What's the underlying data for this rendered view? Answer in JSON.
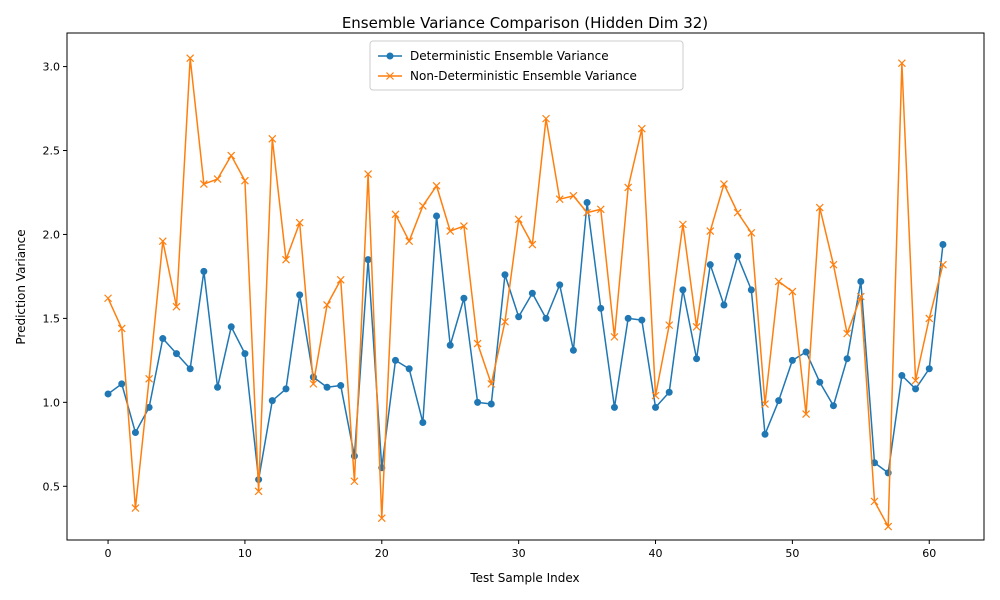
{
  "chart_data": {
    "type": "line",
    "title": "Ensemble Variance Comparison (Hidden Dim 32)",
    "xlabel": "Test Sample Index",
    "ylabel": "Prediction Variance",
    "xlim": [
      -3,
      64
    ],
    "ylim": [
      0.18,
      3.2
    ],
    "xticks": [
      0,
      10,
      20,
      30,
      40,
      50,
      60
    ],
    "yticks": [
      0.5,
      1.0,
      1.5,
      2.0,
      2.5,
      3.0
    ],
    "xtick_labels": [
      "0",
      "10",
      "20",
      "30",
      "40",
      "50",
      "60"
    ],
    "ytick_labels": [
      "0.5",
      "1.0",
      "1.5",
      "2.0",
      "2.5",
      "3.0"
    ],
    "grid": false,
    "legend_position": "top-center",
    "series": [
      {
        "name": "Deterministic Ensemble Variance",
        "color": "#1f77b4",
        "marker": "circle",
        "values": [
          1.05,
          1.11,
          0.82,
          0.97,
          1.38,
          1.29,
          1.2,
          1.78,
          1.09,
          1.45,
          1.29,
          0.54,
          1.01,
          1.08,
          1.64,
          1.15,
          1.09,
          1.1,
          0.68,
          1.85,
          0.61,
          1.25,
          1.2,
          0.88,
          2.11,
          1.34,
          1.62,
          1.0,
          0.99,
          1.76,
          1.51,
          1.65,
          1.5,
          1.7,
          1.31,
          2.19,
          1.56,
          0.97,
          1.5,
          1.49,
          0.97,
          1.06,
          1.67,
          1.26,
          1.82,
          1.58,
          1.87,
          1.67,
          0.81,
          1.01,
          1.25,
          1.3,
          1.12,
          0.98,
          1.26,
          1.72,
          0.64,
          0.58,
          1.16,
          1.08,
          1.2,
          1.94
        ]
      },
      {
        "name": "Non-Deterministic Ensemble Variance",
        "color": "#ff7f0e",
        "marker": "x",
        "values": [
          1.62,
          1.44,
          0.37,
          1.14,
          1.96,
          1.57,
          3.05,
          2.3,
          2.33,
          2.47,
          2.32,
          0.47,
          2.57,
          1.85,
          2.07,
          1.11,
          1.58,
          1.73,
          0.53,
          2.36,
          0.31,
          2.12,
          1.96,
          2.17,
          2.29,
          2.02,
          2.05,
          1.35,
          1.11,
          1.48,
          2.09,
          1.94,
          2.69,
          2.21,
          2.23,
          2.13,
          2.15,
          1.39,
          2.28,
          2.63,
          1.04,
          1.46,
          2.06,
          1.45,
          2.02,
          2.3,
          2.13,
          2.01,
          0.99,
          1.72,
          1.66,
          0.93,
          2.16,
          1.82,
          1.41,
          1.63,
          0.41,
          0.26,
          3.02,
          1.13,
          1.5,
          1.82
        ]
      }
    ]
  }
}
